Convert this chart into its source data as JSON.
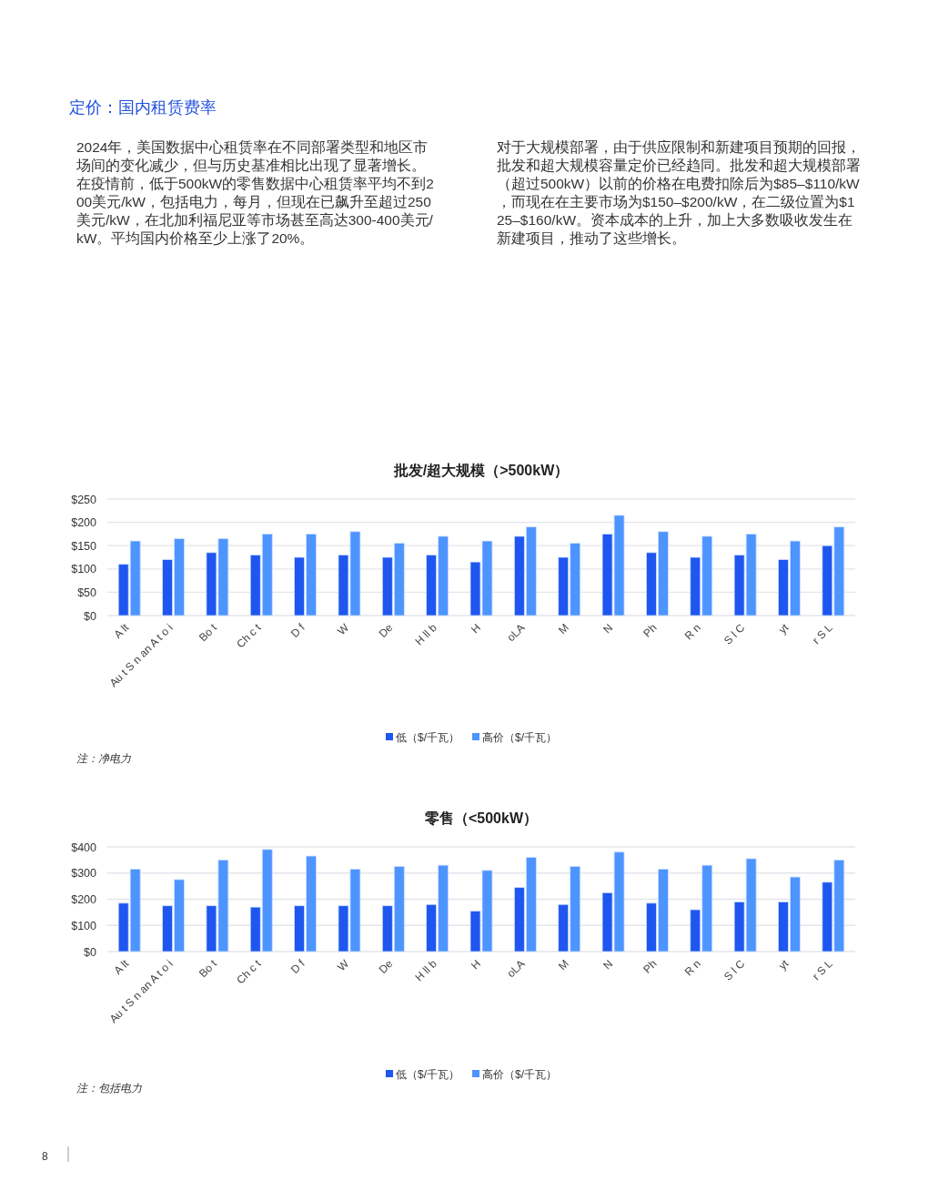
{
  "chart_data": [
    {
      "type": "other",
      "title": "定价：国内租赁费率",
      "annotations": [
        "2024年，美国数据中心租赁率在不同部署类型和地区市场间的变化减少，但与历史基准相比出现了显著增长。在疫情前，低于500kW的零售数据中心租赁率平均不到200美元/kW，包括电力，每月，但现在已飙升至超过250美元/kW，在北加利福尼亚等市场甚至高达300-400美元/kW。平均国内价格至少上涨了20%。",
        "对于大规模部署，由于供应限制和新建项目预期的回报，批发和超大规模容量定价已经趋同。批发和超大规模部署（超过500kW）以前的价格在电费扣除后为$85–$110/kW，而现在在主要市场为$150–$200/kW，在二级位置为$125–$160/kW。资本成本的上升，加上大多数吸收发生在新建项目，推动了这些增长。",
        "8"
      ]
    },
    {
      "type": "bar",
      "title": "批发/超大规模（>500kW）",
      "categories": [
        "A lt",
        "Au t S n an A t o i",
        "Bo t",
        "Ch c t",
        "D f",
        "W",
        "De",
        "H ll b",
        "H",
        "oLA",
        "M",
        "N",
        "Ph",
        "R n",
        "S l C",
        "yt",
        "r S L"
      ],
      "series": [
        {
          "name": "低（$/千瓦）",
          "color": "#1f56f0",
          "values": [
            110,
            120,
            135,
            130,
            125,
            130,
            125,
            130,
            115,
            170,
            125,
            175,
            135,
            125,
            130,
            120,
            150
          ]
        },
        {
          "name": "高价（$/千瓦）",
          "color": "#4d94ff",
          "values": [
            160,
            165,
            165,
            175,
            175,
            180,
            155,
            170,
            160,
            190,
            155,
            215,
            180,
            170,
            175,
            160,
            190
          ]
        }
      ],
      "ylim": [
        0,
        250
      ],
      "yticks": [
        {
          "value": 0,
          "label": "$0"
        },
        {
          "value": 50,
          "label": "$50"
        },
        {
          "value": 100,
          "label": "$100"
        },
        {
          "value": 150,
          "label": "$150"
        },
        {
          "value": 200,
          "label": "$200"
        },
        {
          "value": 250,
          "label": "$250"
        }
      ],
      "grid": "y",
      "legend": "bottom",
      "annotations": [
        "注：净电力"
      ]
    },
    {
      "type": "bar",
      "title": "零售（<500kW）",
      "categories": [
        "A lt",
        "Au t S n an A t o i",
        "Bo t",
        "Ch c t",
        "D f",
        "W",
        "De",
        "H ll b",
        "H",
        "oLA",
        "M",
        "N",
        "Ph",
        "R n",
        "S l C",
        "yt",
        "r S L"
      ],
      "series": [
        {
          "name": "低（$/千瓦）",
          "color": "#1f56f0",
          "values": [
            185,
            175,
            175,
            170,
            175,
            175,
            175,
            180,
            155,
            245,
            180,
            225,
            185,
            160,
            190,
            190,
            265
          ]
        },
        {
          "name": "高价（$/千瓦）",
          "color": "#4d94ff",
          "values": [
            315,
            275,
            350,
            390,
            365,
            315,
            325,
            330,
            310,
            360,
            325,
            380,
            315,
            330,
            355,
            285,
            350
          ]
        }
      ],
      "ylim": [
        0,
        400
      ],
      "yticks": [
        {
          "value": 0,
          "label": "$0"
        },
        {
          "value": 100,
          "label": "$100"
        },
        {
          "value": 200,
          "label": "$200"
        },
        {
          "value": 300,
          "label": "$300"
        },
        {
          "value": 400,
          "label": "$400"
        }
      ],
      "grid": "y",
      "legend": "bottom",
      "annotations": [
        "注：包括电力"
      ]
    }
  ]
}
